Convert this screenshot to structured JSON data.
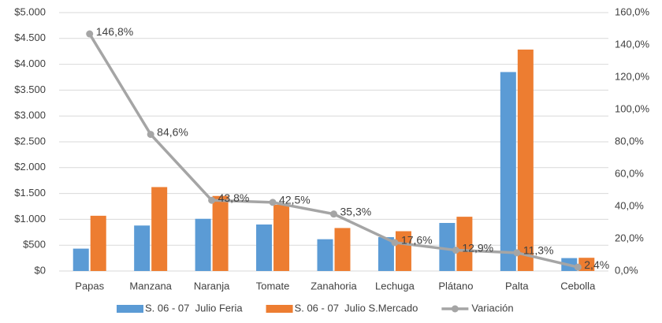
{
  "chart_data": {
    "type": "bar",
    "categories": [
      "Papas",
      "Manzana",
      "Naranja",
      "Tomate",
      "Zanahoria",
      "Lechuga",
      "Plátano",
      "Palta",
      "Cebolla"
    ],
    "series": [
      {
        "name": "S. 06 - 07  Julio Feria",
        "color": "#5b9bd5",
        "values": [
          433,
          880,
          1010,
          900,
          615,
          655,
          930,
          3850,
          250
        ]
      },
      {
        "name": "S. 06 - 07  Julio S.Mercado",
        "color": "#ed7d31",
        "values": [
          1069,
          1624,
          1452,
          1282,
          832,
          770,
          1050,
          4285,
          256
        ]
      },
      {
        "name": "Variación",
        "type": "line",
        "axis": "y2",
        "color": "#a5a5a5",
        "values": [
          146.8,
          84.6,
          43.8,
          42.5,
          35.3,
          17.6,
          12.9,
          11.3,
          2.4
        ],
        "value_labels": [
          "146,8%",
          "84,6%",
          "43,8%",
          "42,5%",
          "35,3%",
          "17,6%",
          "12,9%",
          "11,3%",
          "2,4%"
        ]
      }
    ],
    "ylim": [
      0,
      5000
    ],
    "yticks": [
      {
        "value": 0,
        "label": "$0"
      },
      {
        "value": 500,
        "label": "$500"
      },
      {
        "value": 1000,
        "label": "$1.000"
      },
      {
        "value": 1500,
        "label": "$1.500"
      },
      {
        "value": 2000,
        "label": "$2.000"
      },
      {
        "value": 2500,
        "label": "$2.500"
      },
      {
        "value": 3000,
        "label": "$3.000"
      },
      {
        "value": 3500,
        "label": "$3.500"
      },
      {
        "value": 4000,
        "label": "$4.000"
      },
      {
        "value": 4500,
        "label": "$4.500"
      },
      {
        "value": 5000,
        "label": "$5.000"
      }
    ],
    "y2lim": [
      0,
      160
    ],
    "y2ticks": [
      {
        "value": 0,
        "label": "0,0%"
      },
      {
        "value": 20,
        "label": "20,0%"
      },
      {
        "value": 40,
        "label": "40,0%"
      },
      {
        "value": 60,
        "label": "60,0%"
      },
      {
        "value": 80,
        "label": "80,0%"
      },
      {
        "value": 100,
        "label": "100,0%"
      },
      {
        "value": 120,
        "label": "120,0%"
      },
      {
        "value": 140,
        "label": "140,0%"
      },
      {
        "value": 160,
        "label": "160,0%"
      }
    ],
    "grid": true,
    "legend": "bottom"
  }
}
